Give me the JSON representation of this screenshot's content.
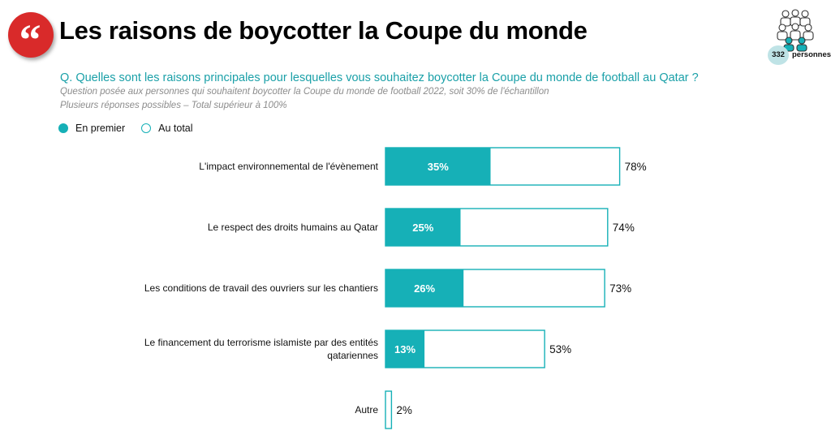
{
  "header": {
    "title": "Les raisons de boycotter la Coupe du monde",
    "quote_mark": "“",
    "panel_count": "332",
    "panel_label": "personnes"
  },
  "question": "Q. Quelles sont les raisons principales pour lesquelles vous souhaitez boycotter la Coupe du monde de football au Qatar ?",
  "notes": [
    "Question posée aux personnes qui souhaitent boycotter la Coupe du monde de football 2022, soit 30% de l'échantillon",
    "Plusieurs réponses possibles – Total supérieur à 100%"
  ],
  "legend": {
    "first": "En premier",
    "total": "Au total"
  },
  "colors": {
    "accent": "#16b0b7",
    "brand_red": "#d92a2a",
    "question": "#1aa0a8",
    "note": "#8c8c8c"
  },
  "icons": {
    "quote": "quote-icon",
    "panel": "people-group-icon"
  },
  "chart_data": {
    "type": "bar",
    "orientation": "horizontal",
    "categories": [
      [
        "L'impact environnemental de l'évènement"
      ],
      [
        "Le respect des droits humains au Qatar"
      ],
      [
        "Les conditions de travail des ouvriers sur les chantiers"
      ],
      [
        "Le financement du terrorisme islamiste par des entités",
        "qatariennes"
      ],
      [
        "Autre"
      ]
    ],
    "series": [
      {
        "name": "En premier",
        "values": [
          35,
          25,
          26,
          13,
          null
        ],
        "labels": [
          "35%",
          "25%",
          "26%",
          "13%",
          ""
        ]
      },
      {
        "name": "Au total",
        "values": [
          78,
          74,
          73,
          53,
          2
        ],
        "labels": [
          "78%",
          "74%",
          "73%",
          "53%",
          "2%"
        ]
      }
    ],
    "unit": "%",
    "xlim": [
      0,
      100
    ],
    "grid": false,
    "legend_position": "top-left"
  }
}
